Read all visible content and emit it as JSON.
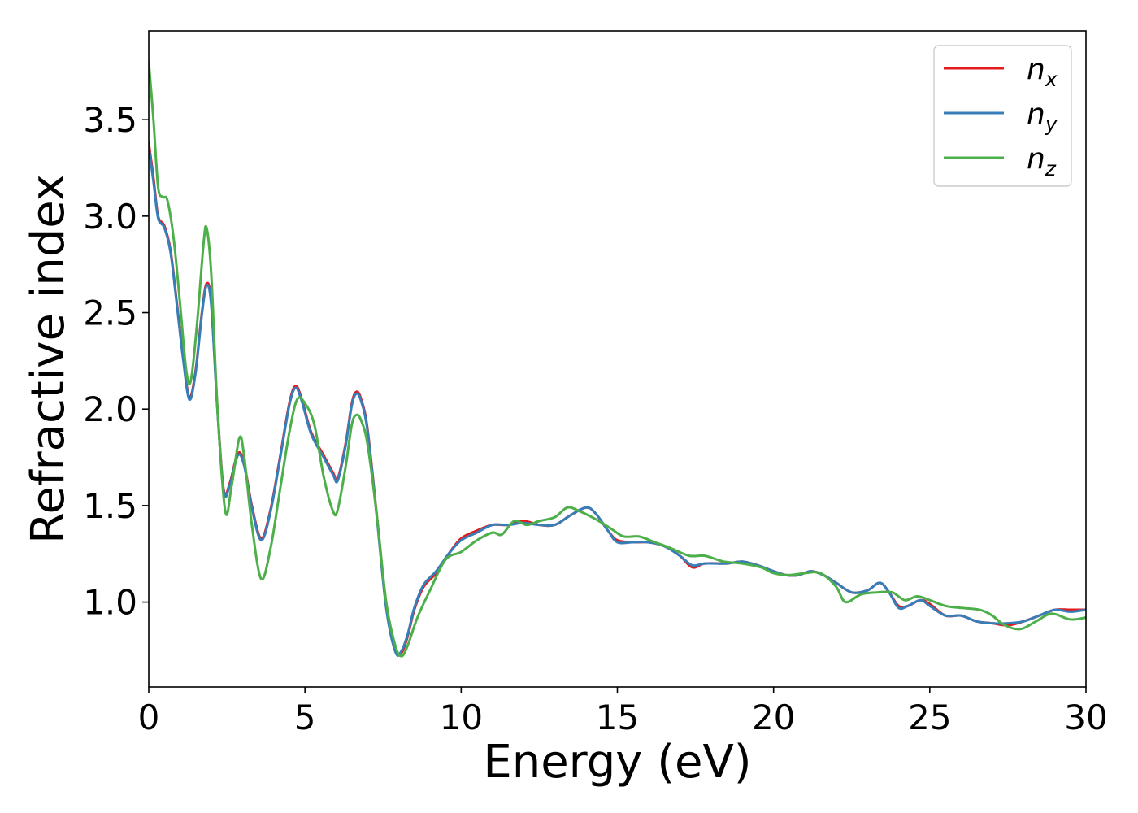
{
  "chart_data": {
    "type": "line",
    "title": "",
    "xlabel": "Energy (eV)",
    "ylabel": "Refractive index",
    "xlim": [
      0,
      30
    ],
    "ylim": [
      0.56,
      3.96
    ],
    "xticks": [
      0,
      5,
      10,
      15,
      20,
      25,
      30
    ],
    "xtick_labels": [
      "0",
      "5",
      "10",
      "15",
      "20",
      "25",
      "30"
    ],
    "yticks": [
      1.0,
      1.5,
      2.0,
      2.5,
      3.0,
      3.5
    ],
    "ytick_labels": [
      "1.0",
      "1.5",
      "2.0",
      "2.5",
      "3.0",
      "3.5"
    ],
    "grid": false,
    "legend_position": "top-right",
    "series": [
      {
        "name": "n",
        "subscript": "x",
        "color": "#e41a1c",
        "points": [
          [
            0,
            3.38
          ],
          [
            0.15,
            3.2
          ],
          [
            0.3,
            3.0
          ],
          [
            0.5,
            2.95
          ],
          [
            0.7,
            2.82
          ],
          [
            0.9,
            2.55
          ],
          [
            1.1,
            2.27
          ],
          [
            1.3,
            2.06
          ],
          [
            1.5,
            2.2
          ],
          [
            1.7,
            2.5
          ],
          [
            1.85,
            2.65
          ],
          [
            2.0,
            2.55
          ],
          [
            2.2,
            2.0
          ],
          [
            2.4,
            1.58
          ],
          [
            2.6,
            1.62
          ],
          [
            2.85,
            1.77
          ],
          [
            3.05,
            1.72
          ],
          [
            3.3,
            1.5
          ],
          [
            3.6,
            1.33
          ],
          [
            3.9,
            1.48
          ],
          [
            4.2,
            1.75
          ],
          [
            4.5,
            2.03
          ],
          [
            4.7,
            2.12
          ],
          [
            4.9,
            2.05
          ],
          [
            5.2,
            1.88
          ],
          [
            5.6,
            1.76
          ],
          [
            5.9,
            1.67
          ],
          [
            6.05,
            1.64
          ],
          [
            6.3,
            1.82
          ],
          [
            6.5,
            2.03
          ],
          [
            6.65,
            2.09
          ],
          [
            6.8,
            2.05
          ],
          [
            7.0,
            1.9
          ],
          [
            7.3,
            1.45
          ],
          [
            7.6,
            0.98
          ],
          [
            7.9,
            0.75
          ],
          [
            8.1,
            0.74
          ],
          [
            8.3,
            0.83
          ],
          [
            8.5,
            0.96
          ],
          [
            8.8,
            1.08
          ],
          [
            9.2,
            1.15
          ],
          [
            9.6,
            1.25
          ],
          [
            10.0,
            1.33
          ],
          [
            10.5,
            1.37
          ],
          [
            11.0,
            1.4
          ],
          [
            11.5,
            1.4
          ],
          [
            12.0,
            1.42
          ],
          [
            12.5,
            1.4
          ],
          [
            13.0,
            1.4
          ],
          [
            13.5,
            1.45
          ],
          [
            14.0,
            1.49
          ],
          [
            14.3,
            1.46
          ],
          [
            14.7,
            1.37
          ],
          [
            15.0,
            1.32
          ],
          [
            15.5,
            1.31
          ],
          [
            16.0,
            1.31
          ],
          [
            16.5,
            1.29
          ],
          [
            17.0,
            1.24
          ],
          [
            17.4,
            1.18
          ],
          [
            17.8,
            1.2
          ],
          [
            18.5,
            1.2
          ],
          [
            19.0,
            1.21
          ],
          [
            19.5,
            1.19
          ],
          [
            20.0,
            1.16
          ],
          [
            20.4,
            1.14
          ],
          [
            20.8,
            1.14
          ],
          [
            21.2,
            1.16
          ],
          [
            21.6,
            1.14
          ],
          [
            22.0,
            1.1
          ],
          [
            22.5,
            1.05
          ],
          [
            23.0,
            1.06
          ],
          [
            23.4,
            1.1
          ],
          [
            23.7,
            1.05
          ],
          [
            24.0,
            0.98
          ],
          [
            24.3,
            0.98
          ],
          [
            24.7,
            1.01
          ],
          [
            25.0,
            0.99
          ],
          [
            25.5,
            0.93
          ],
          [
            26.0,
            0.93
          ],
          [
            26.5,
            0.9
          ],
          [
            27.0,
            0.89
          ],
          [
            27.5,
            0.88
          ],
          [
            28.0,
            0.9
          ],
          [
            28.5,
            0.93
          ],
          [
            29.0,
            0.96
          ],
          [
            29.5,
            0.96
          ],
          [
            30.0,
            0.96
          ]
        ]
      },
      {
        "name": "n",
        "subscript": "y",
        "color": "#377eb8",
        "points": [
          [
            0,
            3.36
          ],
          [
            0.15,
            3.18
          ],
          [
            0.3,
            2.99
          ],
          [
            0.5,
            2.94
          ],
          [
            0.7,
            2.81
          ],
          [
            0.9,
            2.54
          ],
          [
            1.1,
            2.26
          ],
          [
            1.3,
            2.05
          ],
          [
            1.5,
            2.19
          ],
          [
            1.7,
            2.49
          ],
          [
            1.85,
            2.64
          ],
          [
            2.0,
            2.54
          ],
          [
            2.2,
            1.99
          ],
          [
            2.4,
            1.57
          ],
          [
            2.6,
            1.61
          ],
          [
            2.85,
            1.76
          ],
          [
            3.05,
            1.71
          ],
          [
            3.3,
            1.49
          ],
          [
            3.6,
            1.32
          ],
          [
            3.9,
            1.47
          ],
          [
            4.2,
            1.74
          ],
          [
            4.5,
            2.02
          ],
          [
            4.7,
            2.11
          ],
          [
            4.9,
            2.04
          ],
          [
            5.2,
            1.87
          ],
          [
            5.6,
            1.75
          ],
          [
            5.9,
            1.66
          ],
          [
            6.05,
            1.63
          ],
          [
            6.3,
            1.81
          ],
          [
            6.5,
            2.02
          ],
          [
            6.65,
            2.08
          ],
          [
            6.8,
            2.04
          ],
          [
            7.0,
            1.89
          ],
          [
            7.3,
            1.44
          ],
          [
            7.6,
            0.97
          ],
          [
            7.9,
            0.74
          ],
          [
            8.1,
            0.75
          ],
          [
            8.3,
            0.84
          ],
          [
            8.5,
            0.97
          ],
          [
            8.8,
            1.09
          ],
          [
            9.2,
            1.16
          ],
          [
            9.6,
            1.25
          ],
          [
            10.0,
            1.32
          ],
          [
            10.5,
            1.36
          ],
          [
            11.0,
            1.4
          ],
          [
            11.5,
            1.4
          ],
          [
            12.0,
            1.41
          ],
          [
            12.5,
            1.4
          ],
          [
            13.0,
            1.4
          ],
          [
            13.5,
            1.45
          ],
          [
            14.0,
            1.49
          ],
          [
            14.3,
            1.46
          ],
          [
            14.7,
            1.37
          ],
          [
            15.0,
            1.31
          ],
          [
            15.5,
            1.31
          ],
          [
            16.0,
            1.31
          ],
          [
            16.5,
            1.29
          ],
          [
            17.0,
            1.24
          ],
          [
            17.4,
            1.19
          ],
          [
            17.8,
            1.2
          ],
          [
            18.5,
            1.2
          ],
          [
            19.0,
            1.21
          ],
          [
            19.5,
            1.19
          ],
          [
            20.0,
            1.16
          ],
          [
            20.4,
            1.14
          ],
          [
            20.8,
            1.14
          ],
          [
            21.2,
            1.16
          ],
          [
            21.6,
            1.14
          ],
          [
            22.0,
            1.1
          ],
          [
            22.5,
            1.05
          ],
          [
            23.0,
            1.06
          ],
          [
            23.4,
            1.1
          ],
          [
            23.7,
            1.05
          ],
          [
            24.0,
            0.97
          ],
          [
            24.3,
            0.98
          ],
          [
            24.7,
            1.01
          ],
          [
            25.0,
            0.98
          ],
          [
            25.5,
            0.93
          ],
          [
            26.0,
            0.93
          ],
          [
            26.5,
            0.9
          ],
          [
            27.0,
            0.89
          ],
          [
            27.5,
            0.89
          ],
          [
            28.0,
            0.9
          ],
          [
            28.5,
            0.93
          ],
          [
            29.0,
            0.96
          ],
          [
            29.5,
            0.95
          ],
          [
            30.0,
            0.96
          ]
        ]
      },
      {
        "name": "n",
        "subscript": "z",
        "color": "#4daf4a",
        "points": [
          [
            0,
            3.8
          ],
          [
            0.15,
            3.5
          ],
          [
            0.3,
            3.15
          ],
          [
            0.45,
            3.1
          ],
          [
            0.6,
            3.08
          ],
          [
            0.8,
            2.88
          ],
          [
            1.0,
            2.55
          ],
          [
            1.2,
            2.2
          ],
          [
            1.35,
            2.15
          ],
          [
            1.55,
            2.45
          ],
          [
            1.75,
            2.85
          ],
          [
            1.85,
            2.94
          ],
          [
            2.0,
            2.7
          ],
          [
            2.2,
            2.0
          ],
          [
            2.45,
            1.47
          ],
          [
            2.65,
            1.6
          ],
          [
            2.9,
            1.85
          ],
          [
            3.05,
            1.76
          ],
          [
            3.3,
            1.4
          ],
          [
            3.6,
            1.12
          ],
          [
            3.9,
            1.28
          ],
          [
            4.2,
            1.58
          ],
          [
            4.5,
            1.88
          ],
          [
            4.75,
            2.05
          ],
          [
            5.0,
            2.03
          ],
          [
            5.3,
            1.92
          ],
          [
            5.6,
            1.65
          ],
          [
            5.9,
            1.47
          ],
          [
            6.05,
            1.48
          ],
          [
            6.3,
            1.7
          ],
          [
            6.5,
            1.92
          ],
          [
            6.65,
            1.97
          ],
          [
            6.8,
            1.94
          ],
          [
            7.0,
            1.82
          ],
          [
            7.3,
            1.45
          ],
          [
            7.6,
            1.0
          ],
          [
            7.9,
            0.77
          ],
          [
            8.1,
            0.72
          ],
          [
            8.3,
            0.78
          ],
          [
            8.6,
            0.92
          ],
          [
            9.0,
            1.06
          ],
          [
            9.5,
            1.22
          ],
          [
            10.0,
            1.26
          ],
          [
            10.5,
            1.32
          ],
          [
            11.0,
            1.36
          ],
          [
            11.3,
            1.35
          ],
          [
            11.7,
            1.42
          ],
          [
            12.1,
            1.4
          ],
          [
            12.5,
            1.42
          ],
          [
            13.0,
            1.44
          ],
          [
            13.4,
            1.49
          ],
          [
            13.8,
            1.47
          ],
          [
            14.3,
            1.43
          ],
          [
            14.8,
            1.38
          ],
          [
            15.2,
            1.34
          ],
          [
            15.7,
            1.34
          ],
          [
            16.2,
            1.31
          ],
          [
            16.7,
            1.28
          ],
          [
            17.3,
            1.24
          ],
          [
            17.8,
            1.24
          ],
          [
            18.4,
            1.21
          ],
          [
            19.0,
            1.2
          ],
          [
            19.6,
            1.18
          ],
          [
            20.0,
            1.15
          ],
          [
            20.5,
            1.14
          ],
          [
            21.0,
            1.15
          ],
          [
            21.5,
            1.15
          ],
          [
            22.0,
            1.08
          ],
          [
            22.3,
            1.0
          ],
          [
            22.8,
            1.04
          ],
          [
            23.3,
            1.05
          ],
          [
            23.8,
            1.05
          ],
          [
            24.2,
            1.01
          ],
          [
            24.6,
            1.03
          ],
          [
            25.0,
            1.01
          ],
          [
            25.5,
            0.98
          ],
          [
            26.0,
            0.97
          ],
          [
            26.6,
            0.96
          ],
          [
            27.0,
            0.93
          ],
          [
            27.4,
            0.88
          ],
          [
            27.9,
            0.86
          ],
          [
            28.4,
            0.9
          ],
          [
            28.9,
            0.94
          ],
          [
            29.5,
            0.91
          ],
          [
            30.0,
            0.92
          ]
        ]
      }
    ]
  }
}
